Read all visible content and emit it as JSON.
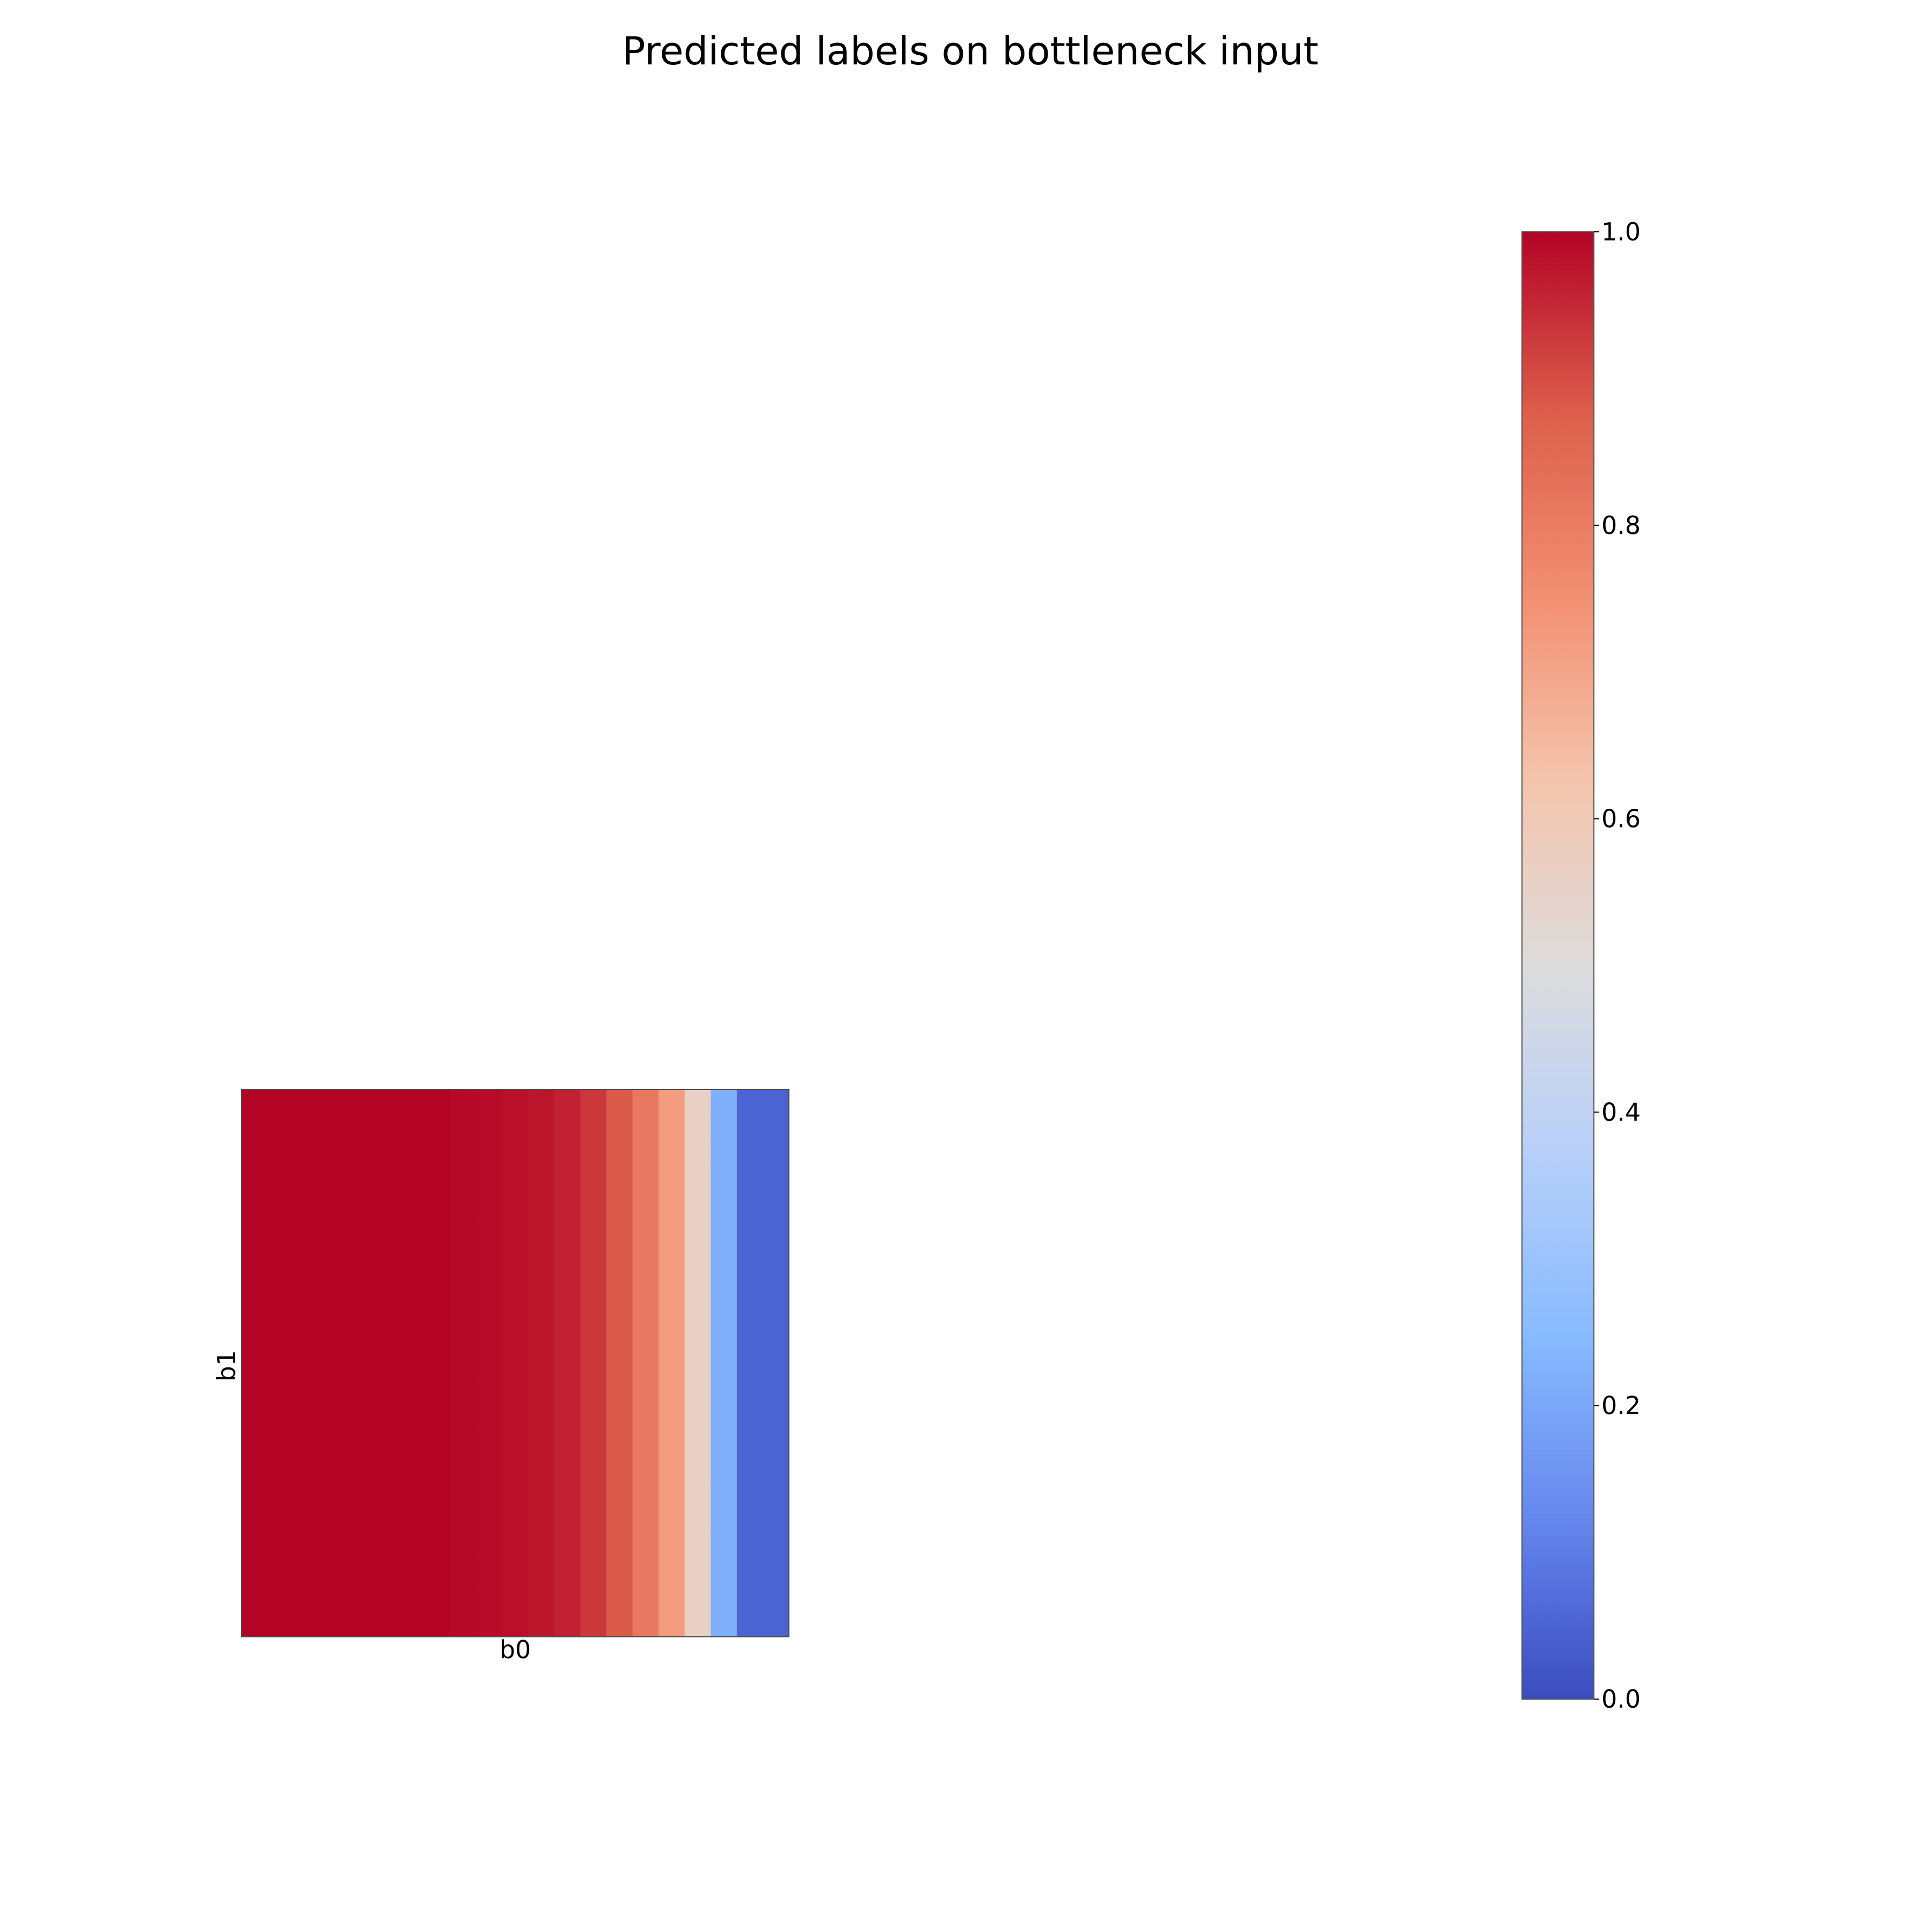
{
  "chart_data": {
    "type": "heatmap",
    "title": "Predicted labels on bottleneck input",
    "xlabel": "b0",
    "ylabel": "b1",
    "colormap": "coolwarm",
    "vmin": 0.0,
    "vmax": 1.0,
    "colorbar_ticks": [
      "0.0",
      "0.2",
      "0.4",
      "0.6",
      "0.8",
      "1.0"
    ],
    "colorbar_tick_values": [
      0.0,
      0.2,
      0.4,
      0.6,
      0.8,
      1.0
    ],
    "x_range": [
      0,
      1
    ],
    "y_range": [
      0,
      1
    ],
    "n_cols": 21,
    "n_rows": 21,
    "column_values": [
      1.0,
      1.0,
      1.0,
      1.0,
      1.0,
      1.0,
      1.0,
      1.0,
      0.995,
      0.99,
      0.985,
      0.975,
      0.96,
      0.93,
      0.88,
      0.81,
      0.72,
      0.56,
      0.22,
      0.05,
      0.05
    ]
  },
  "colors": {
    "cmap_stops": [
      "#3b4cc0",
      "#6688ee",
      "#88bbff",
      "#b8d0f9",
      "#dddcdc",
      "#f5c4ac",
      "#f29072",
      "#dd5f4b",
      "#b40426"
    ]
  }
}
